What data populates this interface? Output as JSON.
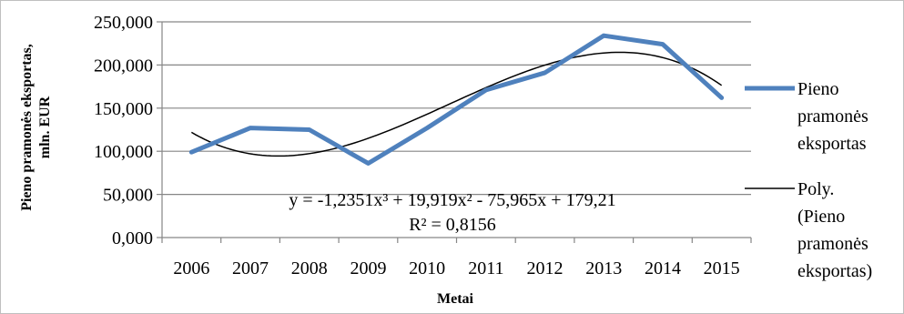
{
  "chart_data": {
    "type": "line",
    "title": "",
    "xlabel": "Metai",
    "ylabel_lines": [
      "Pieno pramonės eksportas,",
      "mln. EUR"
    ],
    "categories": [
      "2006",
      "2007",
      "2008",
      "2009",
      "2010",
      "2011",
      "2012",
      "2013",
      "2014",
      "2015"
    ],
    "y_ticks": [
      "0,000",
      "50,000",
      "100,000",
      "150,000",
      "200,000",
      "250,000"
    ],
    "ylim": [
      0,
      250
    ],
    "grid": true,
    "legend_position": "right",
    "series": [
      {
        "name_lines": [
          "Pieno",
          "pramonės",
          "eksportas"
        ],
        "color": "#4f81bd",
        "values": [
          99,
          127,
          125,
          86,
          127,
          171,
          191,
          234,
          224,
          162
        ]
      }
    ],
    "trendline": {
      "name_lines": [
        "Poly.",
        "(Pieno",
        "pramonės",
        "eksportas)"
      ],
      "color": "#000000",
      "coefficients": [
        -1.2351,
        19.919,
        -75.965,
        179.21
      ],
      "equation": "y = -1,2351x³ + 19,919x² - 75,965x + 179,21",
      "r_squared": "R² = 0,8156"
    }
  }
}
